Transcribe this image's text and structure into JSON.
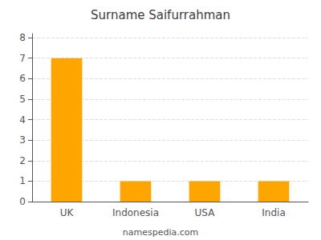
{
  "chart_data": {
    "type": "bar",
    "title": "Surname Saifurrahman",
    "annotations": [
      "namespedia.com"
    ],
    "categories": [
      "UK",
      "Indonesia",
      "USA",
      "India"
    ],
    "values": [
      7,
      1,
      1,
      1
    ],
    "color": "#FFA500",
    "ylim": [
      0,
      8.2
    ],
    "yticks": [
      0,
      1,
      2,
      3,
      4,
      5,
      6,
      7,
      8
    ],
    "grid": true
  }
}
